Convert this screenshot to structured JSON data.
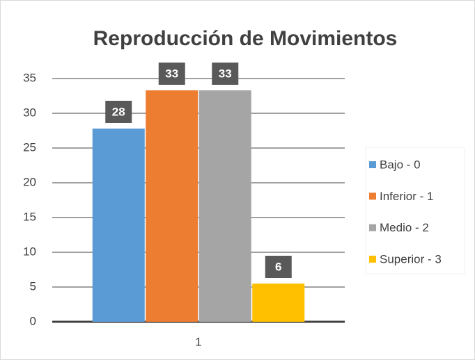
{
  "chart_data": {
    "type": "bar",
    "title": "Reproducción de Movimientos",
    "categories": [
      "1"
    ],
    "series": [
      {
        "name": "Bajo - 0",
        "color": "#5b9bd5",
        "values": [
          27.8
        ],
        "value_labels": [
          "28"
        ]
      },
      {
        "name": "Inferior - 1",
        "color": "#ed7d31",
        "values": [
          33.3
        ],
        "value_labels": [
          "33"
        ]
      },
      {
        "name": "Medio - 2",
        "color": "#a5a5a5",
        "values": [
          33.3
        ],
        "value_labels": [
          "33"
        ]
      },
      {
        "name": "Superior - 3",
        "color": "#ffc000",
        "values": [
          5.5
        ],
        "value_labels": [
          "6"
        ]
      }
    ],
    "ylim": [
      0,
      35
    ],
    "yticks": [
      0,
      5,
      10,
      15,
      20,
      25,
      30,
      35
    ],
    "grid": true,
    "legend": "right"
  }
}
